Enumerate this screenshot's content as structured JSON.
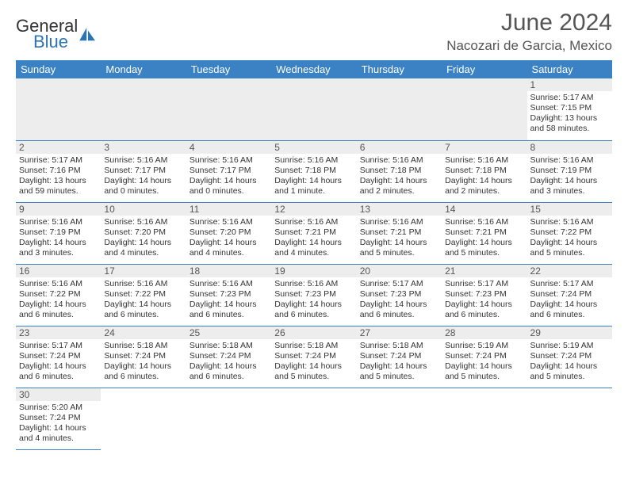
{
  "logo": {
    "general": "General",
    "blue": "Blue"
  },
  "title": "June 2024",
  "location": "Nacozari de Garcia, Mexico",
  "theme": {
    "header_bg": "#3b82c4",
    "header_text": "#ffffff",
    "daynum_bg": "#ededed",
    "border": "#3b82c4",
    "logo_accent": "#2b74b8"
  },
  "weekdays": [
    "Sunday",
    "Monday",
    "Tuesday",
    "Wednesday",
    "Thursday",
    "Friday",
    "Saturday"
  ],
  "weeks": [
    [
      null,
      null,
      null,
      null,
      null,
      null,
      {
        "n": "1",
        "sr": "5:17 AM",
        "ss": "7:15 PM",
        "dl": "13 hours and 58 minutes."
      }
    ],
    [
      {
        "n": "2",
        "sr": "5:17 AM",
        "ss": "7:16 PM",
        "dl": "13 hours and 59 minutes."
      },
      {
        "n": "3",
        "sr": "5:16 AM",
        "ss": "7:17 PM",
        "dl": "14 hours and 0 minutes."
      },
      {
        "n": "4",
        "sr": "5:16 AM",
        "ss": "7:17 PM",
        "dl": "14 hours and 0 minutes."
      },
      {
        "n": "5",
        "sr": "5:16 AM",
        "ss": "7:18 PM",
        "dl": "14 hours and 1 minute."
      },
      {
        "n": "6",
        "sr": "5:16 AM",
        "ss": "7:18 PM",
        "dl": "14 hours and 2 minutes."
      },
      {
        "n": "7",
        "sr": "5:16 AM",
        "ss": "7:18 PM",
        "dl": "14 hours and 2 minutes."
      },
      {
        "n": "8",
        "sr": "5:16 AM",
        "ss": "7:19 PM",
        "dl": "14 hours and 3 minutes."
      }
    ],
    [
      {
        "n": "9",
        "sr": "5:16 AM",
        "ss": "7:19 PM",
        "dl": "14 hours and 3 minutes."
      },
      {
        "n": "10",
        "sr": "5:16 AM",
        "ss": "7:20 PM",
        "dl": "14 hours and 4 minutes."
      },
      {
        "n": "11",
        "sr": "5:16 AM",
        "ss": "7:20 PM",
        "dl": "14 hours and 4 minutes."
      },
      {
        "n": "12",
        "sr": "5:16 AM",
        "ss": "7:21 PM",
        "dl": "14 hours and 4 minutes."
      },
      {
        "n": "13",
        "sr": "5:16 AM",
        "ss": "7:21 PM",
        "dl": "14 hours and 5 minutes."
      },
      {
        "n": "14",
        "sr": "5:16 AM",
        "ss": "7:21 PM",
        "dl": "14 hours and 5 minutes."
      },
      {
        "n": "15",
        "sr": "5:16 AM",
        "ss": "7:22 PM",
        "dl": "14 hours and 5 minutes."
      }
    ],
    [
      {
        "n": "16",
        "sr": "5:16 AM",
        "ss": "7:22 PM",
        "dl": "14 hours and 6 minutes."
      },
      {
        "n": "17",
        "sr": "5:16 AM",
        "ss": "7:22 PM",
        "dl": "14 hours and 6 minutes."
      },
      {
        "n": "18",
        "sr": "5:16 AM",
        "ss": "7:23 PM",
        "dl": "14 hours and 6 minutes."
      },
      {
        "n": "19",
        "sr": "5:16 AM",
        "ss": "7:23 PM",
        "dl": "14 hours and 6 minutes."
      },
      {
        "n": "20",
        "sr": "5:17 AM",
        "ss": "7:23 PM",
        "dl": "14 hours and 6 minutes."
      },
      {
        "n": "21",
        "sr": "5:17 AM",
        "ss": "7:23 PM",
        "dl": "14 hours and 6 minutes."
      },
      {
        "n": "22",
        "sr": "5:17 AM",
        "ss": "7:24 PM",
        "dl": "14 hours and 6 minutes."
      }
    ],
    [
      {
        "n": "23",
        "sr": "5:17 AM",
        "ss": "7:24 PM",
        "dl": "14 hours and 6 minutes."
      },
      {
        "n": "24",
        "sr": "5:18 AM",
        "ss": "7:24 PM",
        "dl": "14 hours and 6 minutes."
      },
      {
        "n": "25",
        "sr": "5:18 AM",
        "ss": "7:24 PM",
        "dl": "14 hours and 6 minutes."
      },
      {
        "n": "26",
        "sr": "5:18 AM",
        "ss": "7:24 PM",
        "dl": "14 hours and 5 minutes."
      },
      {
        "n": "27",
        "sr": "5:18 AM",
        "ss": "7:24 PM",
        "dl": "14 hours and 5 minutes."
      },
      {
        "n": "28",
        "sr": "5:19 AM",
        "ss": "7:24 PM",
        "dl": "14 hours and 5 minutes."
      },
      {
        "n": "29",
        "sr": "5:19 AM",
        "ss": "7:24 PM",
        "dl": "14 hours and 5 minutes."
      }
    ],
    [
      {
        "n": "30",
        "sr": "5:20 AM",
        "ss": "7:24 PM",
        "dl": "14 hours and 4 minutes."
      },
      null,
      null,
      null,
      null,
      null,
      null
    ]
  ],
  "labels": {
    "sunrise": "Sunrise:",
    "sunset": "Sunset:",
    "daylight": "Daylight:"
  }
}
